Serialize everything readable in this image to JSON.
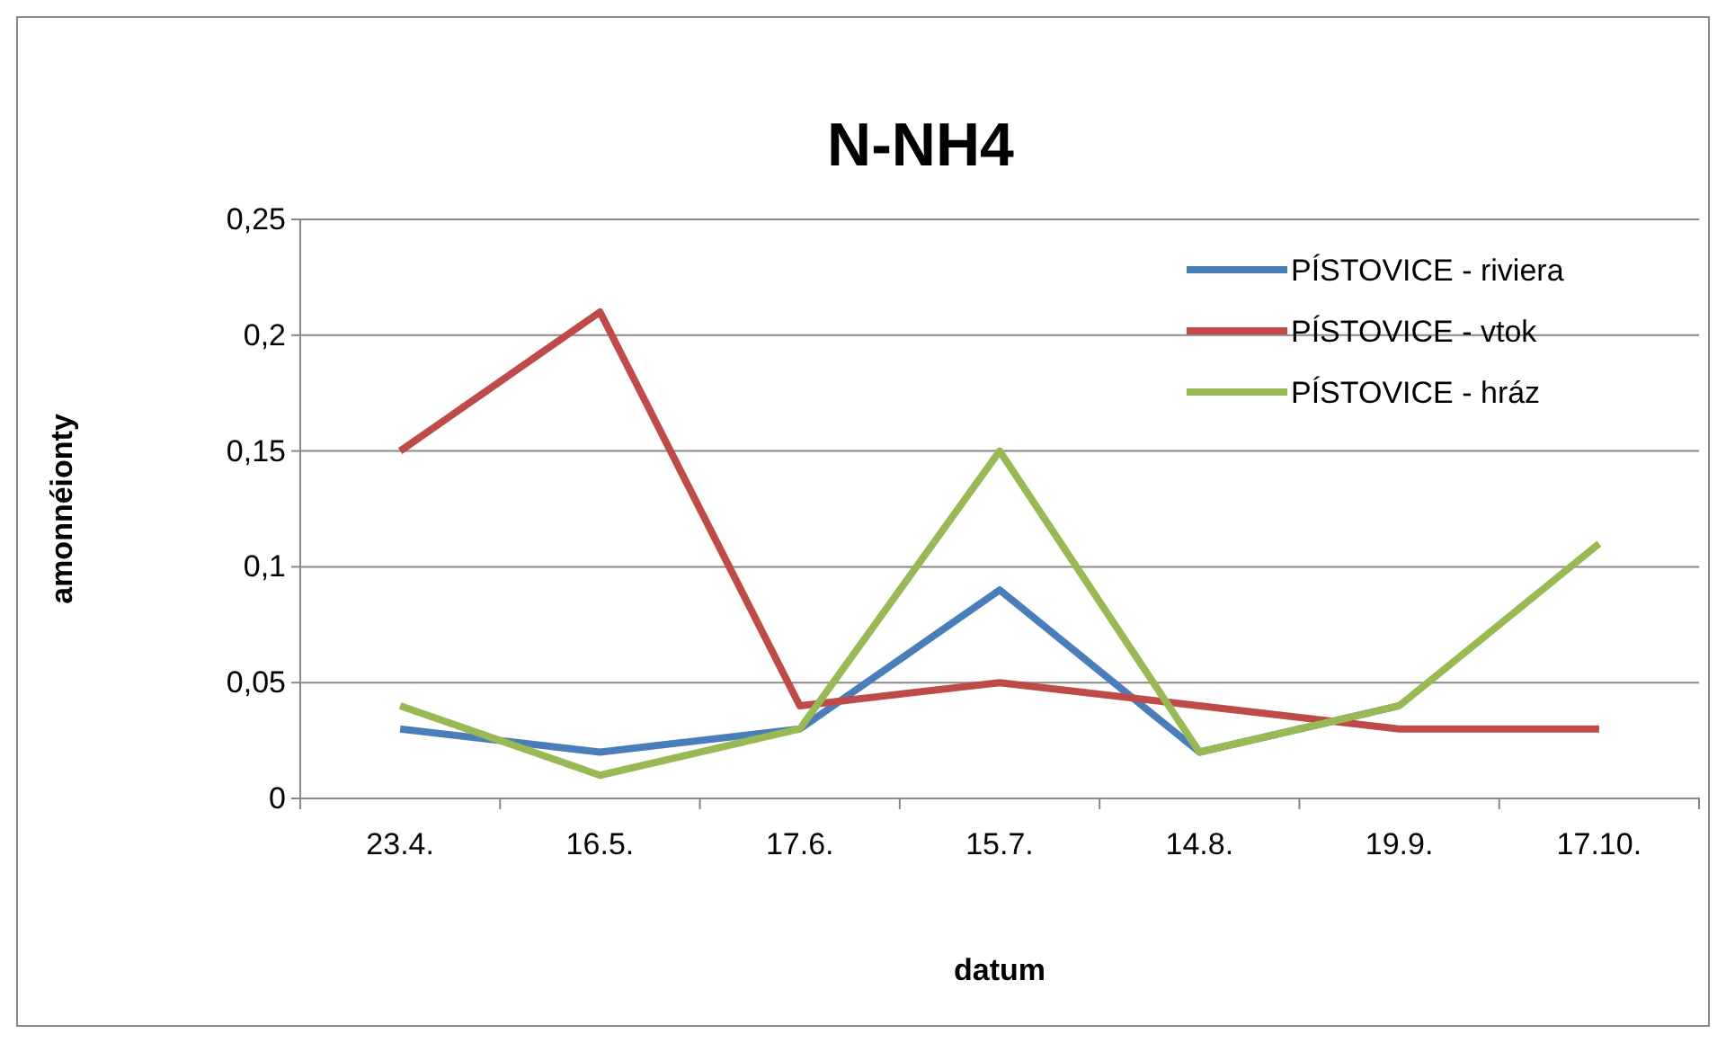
{
  "chart_data": {
    "type": "line",
    "title": "N-NH4",
    "xlabel": "datum",
    "ylabel": "amonnéionty",
    "categories": [
      "23.4.",
      "16.5.",
      "17.6.",
      "15.7.",
      "14.8.",
      "19.9.",
      "17.10."
    ],
    "series": [
      {
        "name": "PÍSTOVICE - riviera",
        "color": "#4a7ebb",
        "values": [
          0.03,
          0.02,
          0.03,
          0.09,
          0.02,
          0.04,
          null
        ]
      },
      {
        "name": "PÍSTOVICE - vtok",
        "color": "#be4b48",
        "values": [
          0.15,
          0.21,
          0.04,
          0.05,
          0.04,
          0.03,
          0.03
        ]
      },
      {
        "name": "PÍSTOVICE - hráz",
        "color": "#98b954",
        "values": [
          0.04,
          0.01,
          0.03,
          0.15,
          0.02,
          0.04,
          0.11
        ]
      }
    ],
    "ylim": [
      0,
      0.25
    ],
    "yticks": [
      {
        "value": 0,
        "label": "0"
      },
      {
        "value": 0.05,
        "label": "0,05"
      },
      {
        "value": 0.1,
        "label": "0,1"
      },
      {
        "value": 0.15,
        "label": "0,15"
      },
      {
        "value": 0.2,
        "label": "0,2"
      },
      {
        "value": 0.25,
        "label": "0,25"
      }
    ],
    "grid": "y",
    "legend": "top right",
    "marker": "none",
    "line_style": "solid"
  }
}
